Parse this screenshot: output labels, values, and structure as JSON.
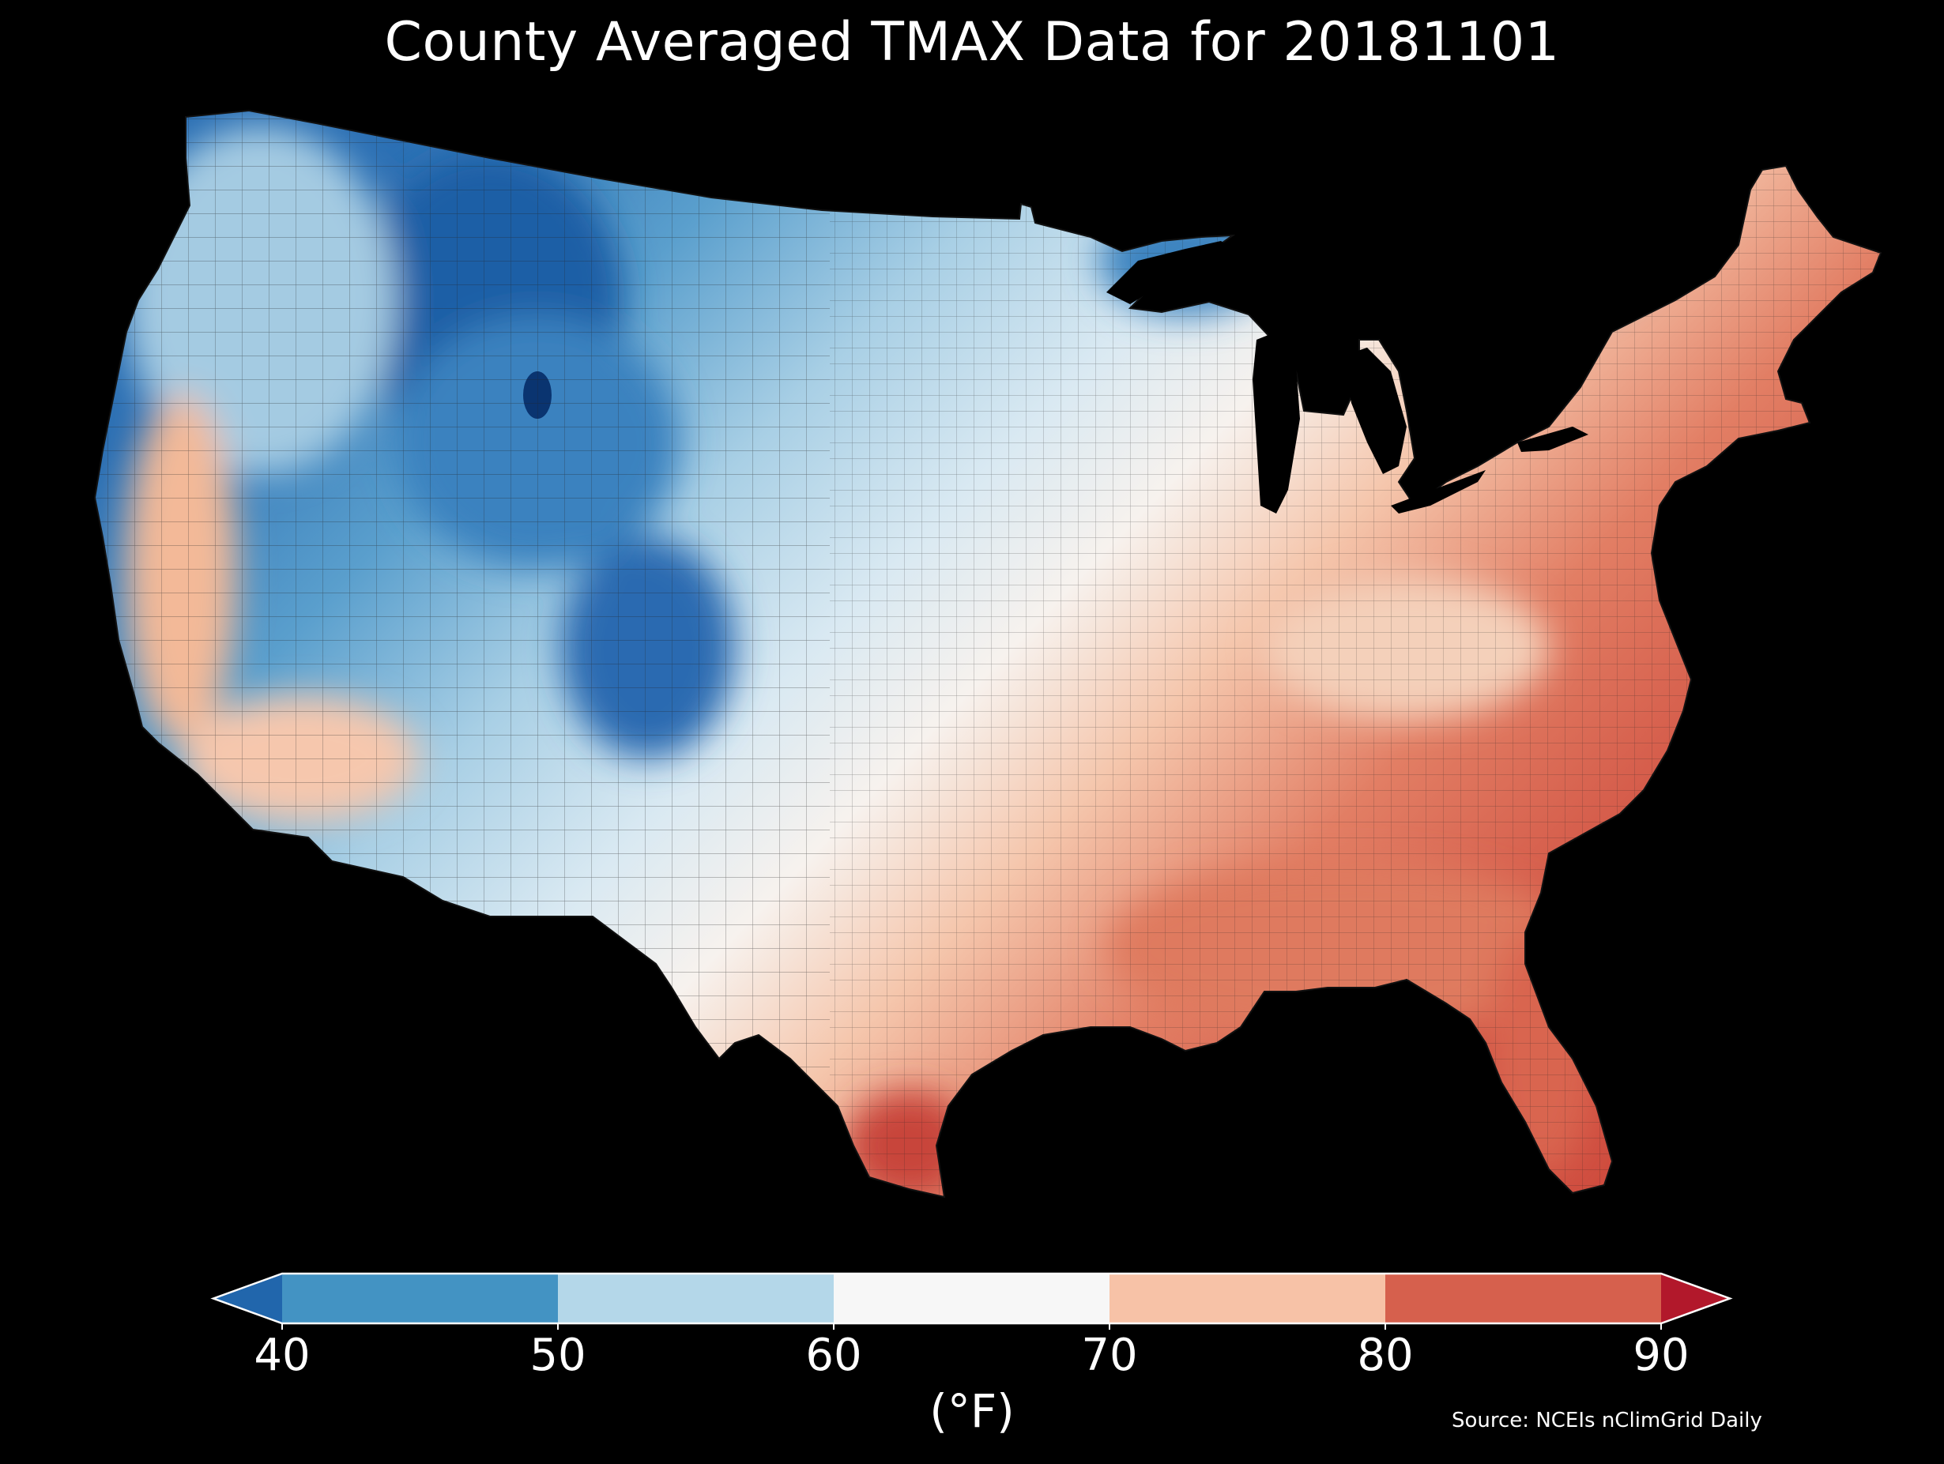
{
  "title": "County Averaged TMAX Data for 20181101",
  "colorbar": {
    "ticks": [
      "40",
      "50",
      "60",
      "70",
      "80",
      "90"
    ],
    "units": "(°F)",
    "bins": [
      {
        "range": [
          null,
          40
        ],
        "color": "#2166ac"
      },
      {
        "range": [
          40,
          50
        ],
        "color": "#4393c3"
      },
      {
        "range": [
          50,
          60
        ],
        "color": "#b4d7e9"
      },
      {
        "range": [
          60,
          70
        ],
        "color": "#f7f7f7"
      },
      {
        "range": [
          70,
          80
        ],
        "color": "#f7c2a7"
      },
      {
        "range": [
          80,
          90
        ],
        "color": "#d6604d"
      },
      {
        "range": [
          90,
          null
        ],
        "color": "#b2182b"
      }
    ]
  },
  "source": "Source: NCEIs nClimGrid Daily",
  "colors": {
    "background": "#000000",
    "coldest": "#08306b",
    "cold": "#2166ac",
    "cool": "#4393c3",
    "mild": "#b4d7e9",
    "neutral": "#f7f7f7",
    "warm": "#f7c2a7",
    "hot": "#d6604d",
    "hottest": "#b2182b"
  },
  "map": {
    "region": "Contiguous United States",
    "variable": "TMAX",
    "date": "20181101"
  }
}
